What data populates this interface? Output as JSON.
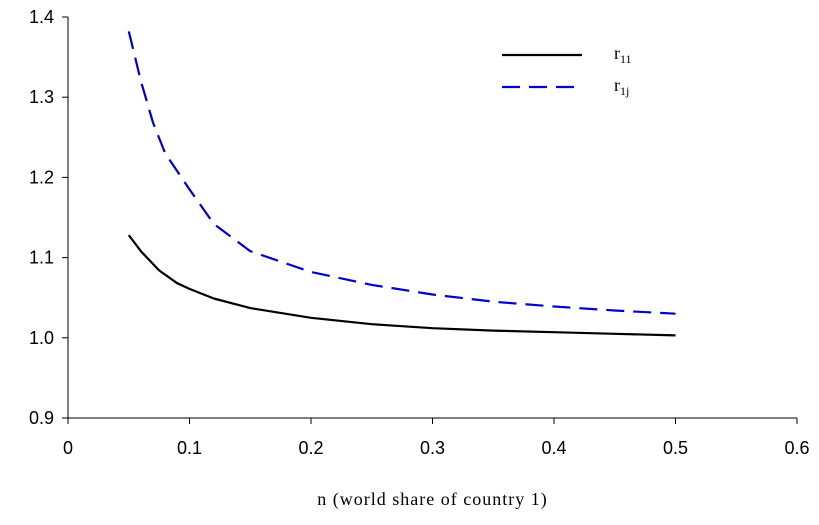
{
  "chart_data": {
    "type": "line",
    "title": "",
    "xlabel": "n (world share of country 1)",
    "ylabel": "",
    "xlim": [
      0,
      0.6
    ],
    "ylim": [
      0.9,
      1.4
    ],
    "x_ticks": [
      "0",
      "0.1",
      "0.2",
      "0.3",
      "0.4",
      "0.5",
      "0.6"
    ],
    "y_ticks": [
      "0.9",
      "1.0",
      "1.1",
      "1.2",
      "1.3",
      "1.4"
    ],
    "grid": false,
    "legend_position": "top-right",
    "series": [
      {
        "name": "r11",
        "name_main": "r",
        "name_sub": "11",
        "color": "#000000",
        "style": "solid",
        "x": [
          0.05,
          0.06,
          0.075,
          0.09,
          0.1,
          0.12,
          0.15,
          0.2,
          0.25,
          0.3,
          0.35,
          0.4,
          0.45,
          0.5
        ],
        "y": [
          1.128,
          1.108,
          1.084,
          1.068,
          1.061,
          1.049,
          1.037,
          1.025,
          1.017,
          1.012,
          1.009,
          1.007,
          1.005,
          1.003
        ]
      },
      {
        "name": "r1j",
        "name_main": "r",
        "name_sub": "1j",
        "color": "#0000cc",
        "style": "dashed",
        "x": [
          0.05,
          0.06,
          0.07,
          0.08,
          0.1,
          0.12,
          0.15,
          0.2,
          0.25,
          0.3,
          0.35,
          0.4,
          0.45,
          0.5
        ],
        "y": [
          1.382,
          1.32,
          1.268,
          1.23,
          1.185,
          1.142,
          1.108,
          1.082,
          1.066,
          1.054,
          1.045,
          1.039,
          1.034,
          1.03
        ]
      }
    ]
  }
}
